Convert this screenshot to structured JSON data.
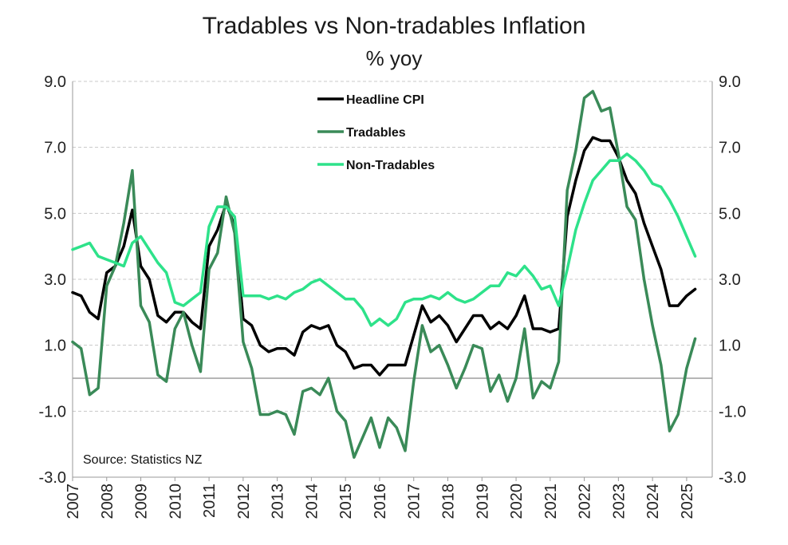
{
  "chart_data": {
    "type": "line",
    "title": "Tradables vs Non-tradables Inflation",
    "subtitle": "% yoy",
    "source": "Source:  Statistics NZ",
    "xlabel": "",
    "ylabel": "",
    "ylim": [
      -3.0,
      9.0
    ],
    "y_ticks": [
      "9.0",
      "7.0",
      "5.0",
      "3.0",
      "1.0",
      "-1.0",
      "-3.0"
    ],
    "y_tick_values": [
      9,
      7,
      5,
      3,
      1,
      -1,
      -3
    ],
    "x_ticks": [
      "2007",
      "2008",
      "2009",
      "2010",
      "2011",
      "2012",
      "2013",
      "2014",
      "2015",
      "2016",
      "2017",
      "2018",
      "2019",
      "2020",
      "2021",
      "2022",
      "2023",
      "2024",
      "2025"
    ],
    "x_start": 2007.0,
    "x_step": 0.25,
    "x_range": [
      2007.0,
      2025.75
    ],
    "series": [
      {
        "name": "Headline CPI",
        "color": "#000000",
        "values": [
          2.6,
          2.5,
          2.0,
          1.8,
          3.2,
          3.4,
          4.0,
          5.1,
          3.4,
          3.0,
          1.9,
          1.7,
          2.0,
          2.0,
          1.7,
          1.5,
          4.0,
          4.5,
          5.3,
          4.6,
          1.8,
          1.6,
          1.0,
          0.8,
          0.9,
          0.9,
          0.7,
          1.4,
          1.6,
          1.5,
          1.6,
          1.0,
          0.8,
          0.3,
          0.4,
          0.4,
          0.1,
          0.4,
          0.4,
          0.4,
          1.3,
          2.2,
          1.7,
          1.9,
          1.6,
          1.1,
          1.5,
          1.9,
          1.9,
          1.5,
          1.7,
          1.5,
          1.9,
          2.5,
          1.5,
          1.5,
          1.4,
          1.5,
          4.9,
          6.0,
          6.9,
          7.3,
          7.2,
          7.2,
          6.7,
          6.0,
          5.6,
          4.7,
          4.0,
          3.3,
          2.2,
          2.2,
          2.5,
          2.7
        ]
      },
      {
        "name": "Tradables",
        "color": "#3a8a58",
        "values": [
          1.1,
          0.9,
          -0.5,
          -0.3,
          2.8,
          3.4,
          4.7,
          6.3,
          2.2,
          1.7,
          0.1,
          -0.1,
          1.5,
          2.0,
          1.0,
          0.2,
          3.3,
          3.8,
          5.5,
          4.4,
          1.1,
          0.3,
          -1.1,
          -1.1,
          -1.0,
          -1.1,
          -1.7,
          -0.4,
          -0.3,
          -0.5,
          0.0,
          -1.0,
          -1.3,
          -2.4,
          -1.8,
          -1.2,
          -2.1,
          -1.2,
          -1.5,
          -2.2,
          -0.1,
          1.6,
          0.8,
          1.0,
          0.4,
          -0.3,
          0.3,
          1.0,
          0.9,
          -0.4,
          0.1,
          -0.7,
          0.0,
          1.5,
          -0.6,
          -0.1,
          -0.3,
          0.5,
          5.7,
          6.9,
          8.5,
          8.7,
          8.1,
          8.2,
          6.8,
          5.2,
          4.8,
          3.0,
          1.6,
          0.4,
          -1.6,
          -1.1,
          0.3,
          1.2
        ]
      },
      {
        "name": "Non-Tradables",
        "color": "#2ee28a",
        "values": [
          3.9,
          4.0,
          4.1,
          3.7,
          3.6,
          3.5,
          3.4,
          4.1,
          4.3,
          3.9,
          3.5,
          3.2,
          2.3,
          2.2,
          2.4,
          2.6,
          4.6,
          5.2,
          5.2,
          4.9,
          2.5,
          2.5,
          2.5,
          2.4,
          2.5,
          2.4,
          2.6,
          2.7,
          2.9,
          3.0,
          2.8,
          2.6,
          2.4,
          2.4,
          2.1,
          1.6,
          1.8,
          1.6,
          1.8,
          2.3,
          2.4,
          2.4,
          2.5,
          2.4,
          2.6,
          2.4,
          2.3,
          2.4,
          2.6,
          2.8,
          2.8,
          3.2,
          3.1,
          3.4,
          3.1,
          2.7,
          2.8,
          2.2,
          3.3,
          4.5,
          5.3,
          6.0,
          6.3,
          6.6,
          6.6,
          6.8,
          6.6,
          6.3,
          5.9,
          5.8,
          5.4,
          4.9,
          4.3,
          3.7
        ]
      }
    ],
    "legend_position": "top-center",
    "grid": true
  }
}
